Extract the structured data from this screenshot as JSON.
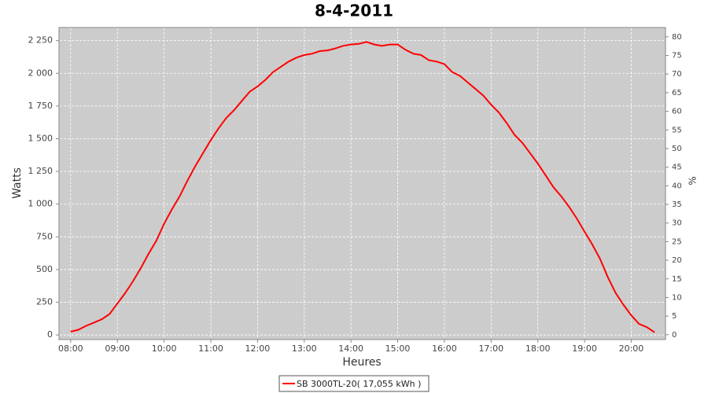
{
  "chart_data": {
    "type": "line",
    "title": "8-4-2011",
    "x_label": "Heures",
    "y_label": "Watts",
    "y2_label": "%",
    "x": [
      "08:00",
      "08:10",
      "08:20",
      "08:30",
      "08:40",
      "08:50",
      "09:00",
      "09:10",
      "09:20",
      "09:30",
      "09:40",
      "09:50",
      "10:00",
      "10:10",
      "10:20",
      "10:30",
      "10:40",
      "10:50",
      "11:00",
      "11:10",
      "11:20",
      "11:30",
      "11:40",
      "11:50",
      "12:00",
      "12:10",
      "12:20",
      "12:30",
      "12:40",
      "12:50",
      "13:00",
      "13:10",
      "13:20",
      "13:30",
      "13:40",
      "13:50",
      "14:00",
      "14:10",
      "14:20",
      "14:30",
      "14:40",
      "14:50",
      "15:00",
      "15:10",
      "15:20",
      "15:30",
      "15:40",
      "15:50",
      "16:00",
      "16:10",
      "16:20",
      "16:30",
      "16:40",
      "16:50",
      "17:00",
      "17:10",
      "17:20",
      "17:30",
      "17:40",
      "17:50",
      "18:00",
      "18:10",
      "18:20",
      "18:30",
      "18:40",
      "18:50",
      "19:00",
      "19:10",
      "19:20",
      "19:30",
      "19:40",
      "19:50",
      "20:00",
      "20:10",
      "20:20",
      "20:30"
    ],
    "series": [
      {
        "name": "SB 3000TL-20( 17,055 kWh )",
        "color": "#ff0000",
        "values": [
          25,
          40,
          70,
          95,
          120,
          160,
          240,
          320,
          410,
          510,
          620,
          720,
          850,
          960,
          1060,
          1180,
          1290,
          1390,
          1490,
          1580,
          1660,
          1720,
          1790,
          1860,
          1900,
          1950,
          2010,
          2050,
          2090,
          2120,
          2140,
          2150,
          2170,
          2175,
          2190,
          2210,
          2220,
          2225,
          2240,
          2220,
          2210,
          2220,
          2220,
          2180,
          2150,
          2140,
          2100,
          2090,
          2070,
          2010,
          1980,
          1930,
          1880,
          1830,
          1760,
          1700,
          1620,
          1530,
          1470,
          1390,
          1310,
          1220,
          1130,
          1060,
          980,
          890,
          790,
          690,
          580,
          440,
          320,
          230,
          150,
          85,
          60,
          20
        ]
      }
    ],
    "xlim": [
      "07:45",
      "20:44"
    ],
    "xticks": [
      "08:00",
      "09:00",
      "10:00",
      "11:00",
      "12:00",
      "13:00",
      "14:00",
      "15:00",
      "16:00",
      "17:00",
      "18:00",
      "19:00",
      "20:00"
    ],
    "ylim": [
      -35,
      2350
    ],
    "yticks": [
      0,
      250,
      500,
      750,
      {
        "value": 1000,
        "label": "1 000"
      },
      {
        "value": 1250,
        "label": "1 250"
      },
      {
        "value": 1500,
        "label": "1 500"
      },
      {
        "value": 1750,
        "label": "1 750"
      },
      {
        "value": 2000,
        "label": "2 000"
      },
      {
        "value": 2250,
        "label": "2 250"
      }
    ],
    "y2lim": [
      -1.3,
      82.5
    ],
    "y2ticks": [
      0,
      5,
      10,
      15,
      20,
      25,
      30,
      35,
      40,
      45,
      50,
      55,
      60,
      65,
      70,
      75,
      80
    ],
    "grid": true
  }
}
